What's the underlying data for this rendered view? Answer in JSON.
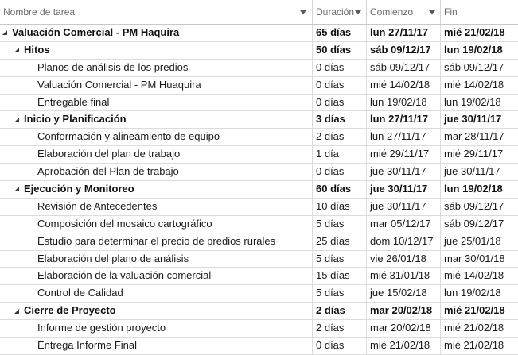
{
  "columns": {
    "name": "Nombre de tarea",
    "duration": "Duración",
    "start": "Comienzo",
    "finish": "Fin"
  },
  "rows": [
    {
      "name": "Valuación Comercial - PM Haquira",
      "duration": "65 días",
      "start": "lun 27/11/17",
      "finish": "mié 21/02/18",
      "level": 0,
      "summary": true
    },
    {
      "name": "Hitos",
      "duration": "50 días",
      "start": "sáb 09/12/17",
      "finish": "lun 19/02/18",
      "level": 1,
      "summary": true
    },
    {
      "name": "Planos de análisis de los predios",
      "duration": "0 días",
      "start": "sáb 09/12/17",
      "finish": "sáb 09/12/17",
      "level": 2,
      "summary": false
    },
    {
      "name": "Valuación Comercial - PM Huaquira",
      "duration": "0 días",
      "start": "mié 14/02/18",
      "finish": "mié 14/02/18",
      "level": 2,
      "summary": false
    },
    {
      "name": "Entregable final",
      "duration": "0 días",
      "start": "lun 19/02/18",
      "finish": "lun 19/02/18",
      "level": 2,
      "summary": false
    },
    {
      "name": "Inicio y Planificación",
      "duration": "3 días",
      "start": "lun 27/11/17",
      "finish": "jue 30/11/17",
      "level": 1,
      "summary": true
    },
    {
      "name": "Conformación y alineamiento de equipo",
      "duration": "2 días",
      "start": "lun 27/11/17",
      "finish": "mar 28/11/17",
      "level": 2,
      "summary": false
    },
    {
      "name": "Elaboración del plan de trabajo",
      "duration": "1 día",
      "start": "mié 29/11/17",
      "finish": "mié 29/11/17",
      "level": 2,
      "summary": false
    },
    {
      "name": "Aprobación del Plan de trabajo",
      "duration": "0 días",
      "start": "jue 30/11/17",
      "finish": "jue 30/11/17",
      "level": 2,
      "summary": false
    },
    {
      "name": "Ejecución y Monitoreo",
      "duration": "60 días",
      "start": "jue 30/11/17",
      "finish": "lun 19/02/18",
      "level": 1,
      "summary": true
    },
    {
      "name": "Revisión de Antecedentes",
      "duration": "10 días",
      "start": "jue 30/11/17",
      "finish": "sáb 09/12/17",
      "level": 2,
      "summary": false
    },
    {
      "name": "Composición del mosaico cartográfico",
      "duration": "5 días",
      "start": "mar 05/12/17",
      "finish": "sáb 09/12/17",
      "level": 2,
      "summary": false
    },
    {
      "name": "Estudio para determinar el precio de predios rurales",
      "duration": "25 días",
      "start": "dom 10/12/17",
      "finish": "jue 25/01/18",
      "level": 2,
      "summary": false
    },
    {
      "name": "Elaboración del plano de análisis",
      "duration": "5 días",
      "start": "vie 26/01/18",
      "finish": "mar 30/01/18",
      "level": 2,
      "summary": false
    },
    {
      "name": "Elaboración de la valuación comercial",
      "duration": "15 días",
      "start": "mié 31/01/18",
      "finish": "mié 14/02/18",
      "level": 2,
      "summary": false
    },
    {
      "name": "Control de Calidad",
      "duration": "5 días",
      "start": "jue 15/02/18",
      "finish": "lun 19/02/18",
      "level": 2,
      "summary": false
    },
    {
      "name": "Cierre de Proyecto",
      "duration": "2 días",
      "start": "mar 20/02/18",
      "finish": "mié 21/02/18",
      "level": 1,
      "summary": true
    },
    {
      "name": "Informe de gestión proyecto",
      "duration": "2 días",
      "start": "mar 20/02/18",
      "finish": "mié 21/02/18",
      "level": 2,
      "summary": false
    },
    {
      "name": "Entrega  Informe Final",
      "duration": "0 días",
      "start": "mié 21/02/18",
      "finish": "mié 21/02/18",
      "level": 2,
      "summary": false
    }
  ]
}
